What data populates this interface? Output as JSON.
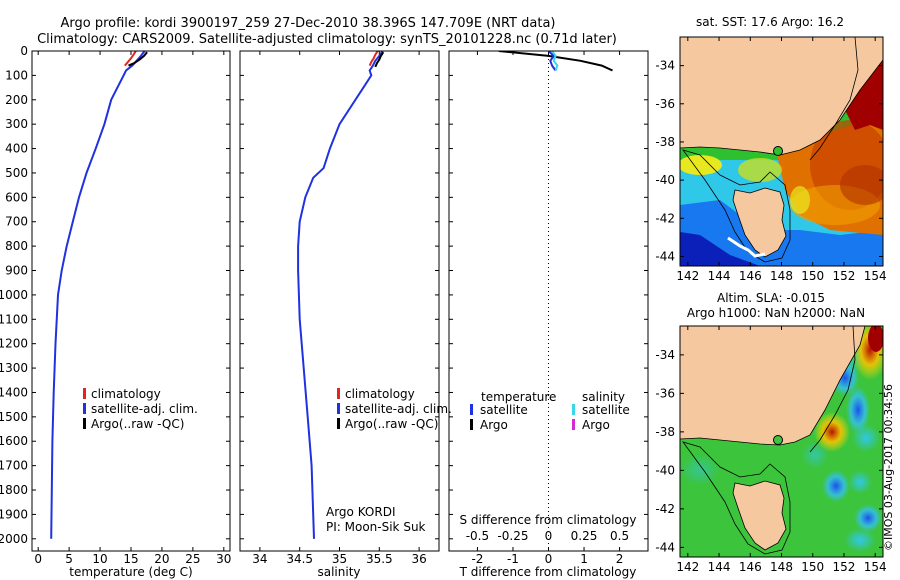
{
  "header": {
    "line1": "Argo profile: kordi 3900197_259 27-Dec-2010 38.396S 147.709E (NRT data)",
    "line2": "Climatology: CARS2009. Satellite-adjusted climatology: synTS_20101228.nc (0.71d later)"
  },
  "watermark": "©IMOS 03-Aug-2017 00:34:56",
  "chart_data": [
    {
      "type": "line",
      "name": "temperature-profile",
      "xlabel": "temperature (deg C)",
      "xlim": [
        -1,
        31
      ],
      "xticks": [
        "0",
        "5",
        "10",
        "15",
        "20",
        "25",
        "30"
      ],
      "ylim": [
        2050,
        0
      ],
      "yticks": [
        "0",
        "100",
        "200",
        "300",
        "400",
        "500",
        "600",
        "700",
        "800",
        "900",
        "1000",
        "1100",
        "1200",
        "1300",
        "1400",
        "1500",
        "1600",
        "1700",
        "1800",
        "1900",
        "2000"
      ],
      "legend": [
        "climatology",
        "satellite-adj. clim.",
        "Argo(..raw -QC)"
      ],
      "legend_colors": [
        "#e0261e",
        "#1f31e0",
        "#000000"
      ],
      "series": [
        {
          "name": "satellite-adj. clim.",
          "color": "#1f31e0",
          "x": [
            17.2,
            16.6,
            15.9,
            15.2,
            14.2,
            13.8,
            12.8,
            11.8,
            10.7,
            9.3,
            7.8,
            6.6,
            5.6,
            4.6,
            3.8,
            3.2,
            2.8,
            2.5,
            2.3,
            2.2,
            2.1
          ],
          "y": [
            0,
            20,
            40,
            60,
            80,
            100,
            150,
            200,
            300,
            400,
            500,
            600,
            700,
            800,
            900,
            1000,
            1200,
            1400,
            1600,
            1800,
            2000
          ]
        },
        {
          "name": "Argo(..raw -QC)",
          "color": "#000000",
          "x": [
            17.6,
            17.1,
            16.4,
            15.5,
            14.6
          ],
          "y": [
            5,
            20,
            35,
            50,
            60
          ]
        },
        {
          "name": "climatology",
          "color": "#e0261e",
          "x": [
            15.8,
            15.4,
            15.0,
            14.5,
            14.0
          ],
          "y": [
            0,
            15,
            30,
            45,
            60
          ]
        }
      ]
    },
    {
      "type": "line",
      "name": "salinity-profile",
      "xlabel": "salinity",
      "xlim": [
        33.75,
        36.25
      ],
      "xticks": [
        "34",
        "34.5",
        "35",
        "35.5",
        "36"
      ],
      "ylim": [
        2050,
        0
      ],
      "legend": [
        "climatology",
        "satellite-adj. clim.",
        "Argo(..raw -QC)"
      ],
      "legend_colors": [
        "#e0261e",
        "#1f31e0",
        "#000000"
      ],
      "annotation": [
        "Argo KORDI",
        "PI: Moon-Sik Suk"
      ],
      "series": [
        {
          "name": "satellite-adj. clim.",
          "color": "#1f31e0",
          "x": [
            35.54,
            35.5,
            35.45,
            35.42,
            35.38,
            35.4,
            35.3,
            35.2,
            35.0,
            34.88,
            34.8,
            34.67,
            34.57,
            34.5,
            34.48,
            34.48,
            34.5,
            34.55,
            34.6,
            34.65,
            34.68
          ],
          "y": [
            0,
            20,
            40,
            60,
            80,
            100,
            150,
            200,
            300,
            400,
            480,
            520,
            600,
            700,
            800,
            900,
            1100,
            1300,
            1500,
            1700,
            2000
          ]
        },
        {
          "name": "Argo(..raw -QC)",
          "color": "#000000",
          "x": [
            35.55,
            35.52,
            35.5,
            35.47,
            35.45
          ],
          "y": [
            5,
            20,
            35,
            50,
            65
          ]
        },
        {
          "name": "climatology",
          "color": "#e0261e",
          "x": [
            35.48,
            35.45,
            35.43,
            35.4,
            35.38
          ],
          "y": [
            0,
            15,
            30,
            45,
            60
          ]
        }
      ]
    },
    {
      "type": "line",
      "name": "difference-profile",
      "xlabel": "T difference from climatology",
      "xlabel_top": "S difference from climatology",
      "xlim": [
        -2.8,
        2.8
      ],
      "xticks": [
        "-2",
        "-1",
        "0",
        "1",
        "2"
      ],
      "sticks": [
        "-0.5",
        "-0.25",
        "0",
        "0.25",
        "0.5"
      ],
      "ylim": [
        2050,
        0
      ],
      "legend_titles": [
        "temperature",
        "salinity"
      ],
      "legend": [
        "satellite",
        "Argo",
        "satellite",
        "Argo"
      ],
      "legend_colors": [
        "#1f31e0",
        "#000000",
        "#39d8e8",
        "#d42ad4"
      ],
      "series": [
        {
          "name": "Argo",
          "color": "#000000",
          "x": [
            -1.4,
            0.0,
            0.9,
            1.5,
            1.8
          ],
          "y": [
            0,
            20,
            40,
            60,
            80
          ]
        },
        {
          "name": "satellite",
          "color": "#1f31e0",
          "x": [
            0.0,
            0.15,
            0.05,
            0.1,
            0.2
          ],
          "y": [
            0,
            20,
            40,
            60,
            80
          ]
        },
        {
          "name": "satellite",
          "color": "#39d8e8",
          "x": [
            0.1,
            0.2,
            0.15,
            0.25,
            0.2
          ],
          "y": [
            0,
            20,
            40,
            60,
            80
          ]
        }
      ]
    },
    {
      "type": "heatmap",
      "name": "sst-map",
      "title": "sat. SST: 17.6 Argo: 16.2",
      "xlim": [
        141.5,
        154.5
      ],
      "ylim": [
        -44.5,
        -32.5
      ],
      "xticks": [
        "142",
        "144",
        "146",
        "148",
        "150",
        "152",
        "154"
      ],
      "yticks": [
        "-34",
        "-36",
        "-38",
        "-40",
        "-42",
        "-44"
      ]
    },
    {
      "type": "heatmap",
      "name": "sla-map",
      "title": "Altim. SLA: -0.015",
      "subtitle": "Argo h1000: NaN h2000: NaN",
      "xlim": [
        141.5,
        154.5
      ],
      "ylim": [
        -44.5,
        -32.5
      ],
      "xticks": [
        "142",
        "144",
        "146",
        "148",
        "150",
        "152",
        "154"
      ],
      "yticks": [
        "-34",
        "-36",
        "-38",
        "-40",
        "-42",
        "-44"
      ]
    }
  ]
}
